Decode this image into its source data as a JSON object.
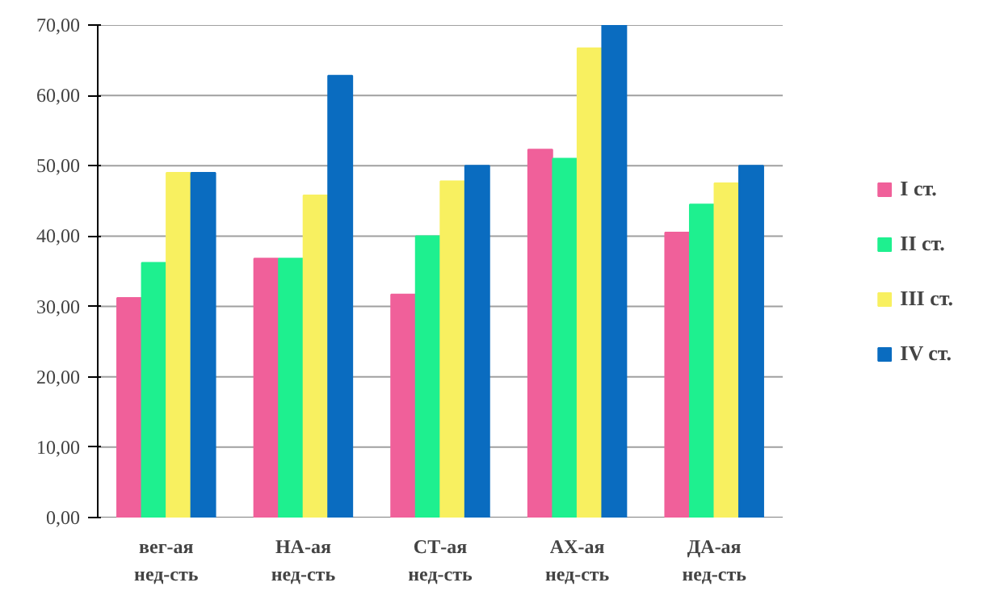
{
  "chart_data": {
    "type": "bar",
    "categories": [
      "вег-ая\nнед-сть",
      "НА-ая\nнед-сть",
      "СТ-ая\nнед-сть",
      "АХ-ая\nнед-сть",
      "ДА-ая\nнед-сть"
    ],
    "series": [
      {
        "name": "I ст.",
        "color": "#f0609a",
        "values": [
          31.2,
          36.8,
          31.7,
          52.3,
          40.5
        ]
      },
      {
        "name": "II ст.",
        "color": "#1ef08f",
        "values": [
          36.2,
          36.8,
          40.0,
          51.0,
          44.5
        ]
      },
      {
        "name": "III ст.",
        "color": "#f8f060",
        "values": [
          49.0,
          45.8,
          47.8,
          66.7,
          47.5
        ]
      },
      {
        "name": "IV ст.",
        "color": "#0a6cc0",
        "values": [
          49.0,
          62.8,
          50.0,
          70.0,
          50.0
        ]
      }
    ],
    "ylim": [
      0,
      70
    ],
    "yticks": [
      {
        "value": 0,
        "label": "0,00"
      },
      {
        "value": 10,
        "label": "10,00"
      },
      {
        "value": 20,
        "label": "20,00"
      },
      {
        "value": 30,
        "label": "30,00"
      },
      {
        "value": 40,
        "label": "40,00"
      },
      {
        "value": 50,
        "label": "50,00"
      },
      {
        "value": 60,
        "label": "60,00"
      },
      {
        "value": 70,
        "label": "70,00"
      }
    ],
    "grid": "y",
    "legend": "right"
  }
}
